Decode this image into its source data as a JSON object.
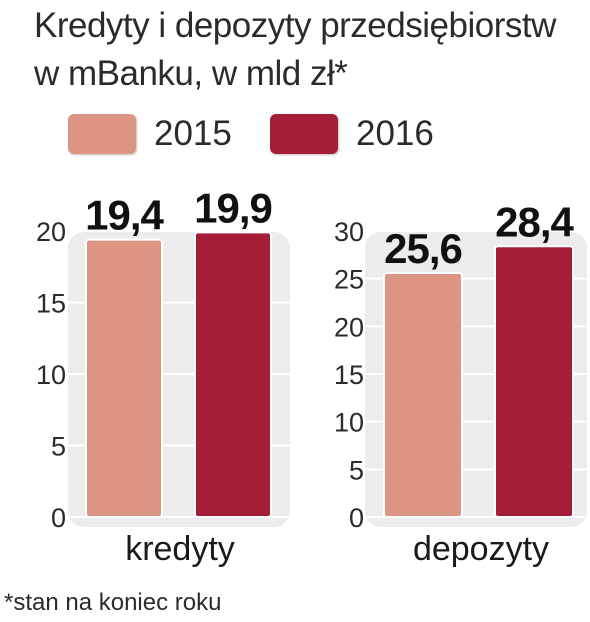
{
  "title_lines": [
    "Kredyty i depozyty przedsiębiorstw",
    "w mBanku, w mld zł*"
  ],
  "legend": [
    {
      "label": "2015",
      "color": "#dc9582"
    },
    {
      "label": "2016",
      "color": "#a51d36"
    }
  ],
  "footnote": "*stan na koniec roku",
  "colors": {
    "panel_bg": "#ececec",
    "gridline": "#ffffff",
    "text": "#222222"
  },
  "chart_data": [
    {
      "type": "bar",
      "categories": [
        "kredyty"
      ],
      "series": [
        {
          "name": "2015",
          "values": [
            19.4
          ],
          "labels": [
            "19,4"
          ]
        },
        {
          "name": "2016",
          "values": [
            19.9
          ],
          "labels": [
            "19,9"
          ]
        }
      ],
      "yticks": [
        "0",
        "5",
        "10",
        "15",
        "20"
      ],
      "ylim": [
        0,
        20
      ],
      "grid": true
    },
    {
      "type": "bar",
      "categories": [
        "depozyty"
      ],
      "series": [
        {
          "name": "2015",
          "values": [
            25.6
          ],
          "labels": [
            "25,6"
          ]
        },
        {
          "name": "2016",
          "values": [
            28.4
          ],
          "labels": [
            "28,4"
          ]
        }
      ],
      "yticks": [
        "0",
        "5",
        "10",
        "15",
        "20",
        "25",
        "30"
      ],
      "ylim": [
        0,
        30
      ],
      "grid": true
    }
  ]
}
